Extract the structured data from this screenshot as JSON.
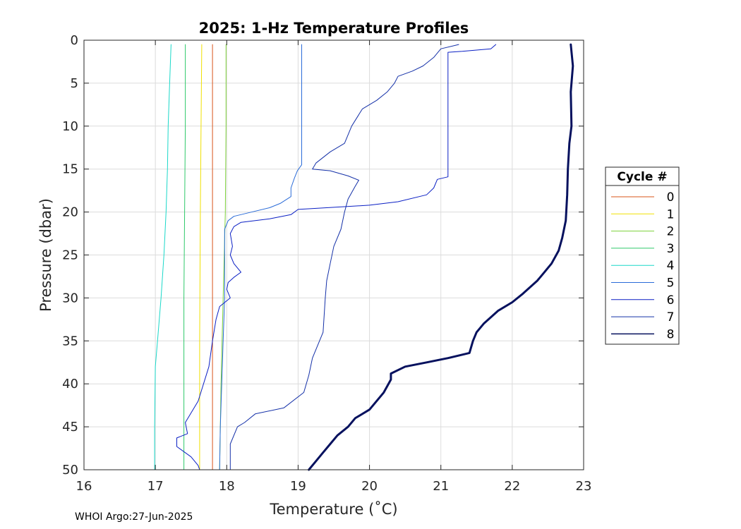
{
  "footer": "WHOI Argo:27-Jun-2025",
  "chart_data": {
    "type": "line",
    "title": "2025: 1-Hz Temperature Profiles",
    "xlabel": "Temperature (˚C)",
    "ylabel": "Pressure (dbar)",
    "xlim": [
      16,
      23
    ],
    "ylim": [
      0,
      50
    ],
    "y_reversed": true,
    "grid": true,
    "xticks": [
      "16",
      "17",
      "18",
      "19",
      "20",
      "21",
      "22",
      "23"
    ],
    "yticks": [
      "0",
      "5",
      "10",
      "15",
      "20",
      "25",
      "30",
      "35",
      "40",
      "45",
      "50"
    ],
    "legend": {
      "title": "Cycle #",
      "placement": "east-outside"
    },
    "series": [
      {
        "name": "0",
        "color": "#d9541a",
        "width": 1,
        "points": [
          [
            17.8,
            0.5
          ],
          [
            17.8,
            50
          ]
        ]
      },
      {
        "name": "1",
        "color": "#f0e000",
        "width": 1,
        "points": [
          [
            17.65,
            0.5
          ],
          [
            17.64,
            10
          ],
          [
            17.63,
            20
          ],
          [
            17.62,
            35
          ],
          [
            17.62,
            50
          ]
        ]
      },
      {
        "name": "2",
        "color": "#7dd13a",
        "width": 1,
        "points": [
          [
            17.99,
            0.5
          ],
          [
            17.99,
            10
          ],
          [
            17.98,
            20
          ],
          [
            17.95,
            30
          ],
          [
            17.92,
            40
          ],
          [
            17.9,
            50
          ]
        ]
      },
      {
        "name": "3",
        "color": "#2fc96a",
        "width": 1,
        "points": [
          [
            17.42,
            0.5
          ],
          [
            17.42,
            10
          ],
          [
            17.41,
            20
          ],
          [
            17.4,
            30
          ],
          [
            17.4,
            40
          ],
          [
            17.4,
            50
          ]
        ]
      },
      {
        "name": "4",
        "color": "#1ad8c9",
        "width": 1,
        "points": [
          [
            17.22,
            0.5
          ],
          [
            17.2,
            5
          ],
          [
            17.18,
            10
          ],
          [
            17.17,
            15
          ],
          [
            17.15,
            20
          ],
          [
            17.12,
            25
          ],
          [
            17.08,
            30
          ],
          [
            17.03,
            35
          ],
          [
            17.0,
            38
          ],
          [
            16.99,
            45
          ],
          [
            16.99,
            50
          ]
        ]
      },
      {
        "name": "5",
        "color": "#2a6bd8",
        "width": 1,
        "points": [
          [
            19.05,
            0.5
          ],
          [
            19.05,
            5
          ],
          [
            19.05,
            10
          ],
          [
            19.05,
            14.5
          ],
          [
            18.99,
            15.2
          ],
          [
            18.95,
            16
          ],
          [
            18.9,
            17.2
          ],
          [
            18.9,
            18.2
          ],
          [
            18.75,
            19
          ],
          [
            18.6,
            19.5
          ],
          [
            18.3,
            20.1
          ],
          [
            18.1,
            20.5
          ],
          [
            18.02,
            21
          ],
          [
            17.97,
            22
          ],
          [
            17.97,
            25
          ],
          [
            17.97,
            30
          ],
          [
            17.95,
            35
          ],
          [
            17.93,
            40
          ],
          [
            17.91,
            45
          ],
          [
            17.9,
            50
          ]
        ]
      },
      {
        "name": "6",
        "color": "#0a1fc4",
        "width": 1,
        "points": [
          [
            21.77,
            0.5
          ],
          [
            21.7,
            1.0
          ],
          [
            21.3,
            1.3
          ],
          [
            21.1,
            1.4
          ],
          [
            21.1,
            5
          ],
          [
            21.1,
            10
          ],
          [
            21.1,
            15
          ],
          [
            21.1,
            15.9
          ],
          [
            20.95,
            16.2
          ],
          [
            20.9,
            17.2
          ],
          [
            20.8,
            18
          ],
          [
            20.4,
            18.8
          ],
          [
            20.0,
            19.2
          ],
          [
            19.4,
            19.5
          ],
          [
            19.0,
            19.7
          ],
          [
            18.9,
            20.3
          ],
          [
            18.6,
            20.8
          ],
          [
            18.2,
            21.2
          ],
          [
            18.1,
            21.7
          ],
          [
            18.05,
            22.5
          ],
          [
            18.08,
            24
          ],
          [
            18.05,
            25
          ],
          [
            18.1,
            26
          ],
          [
            18.2,
            27
          ],
          [
            18.1,
            27.6
          ],
          [
            18.02,
            28.2
          ],
          [
            18.0,
            29
          ],
          [
            18.05,
            30
          ],
          [
            17.9,
            31
          ],
          [
            17.85,
            32.5
          ],
          [
            17.8,
            35
          ],
          [
            17.75,
            38
          ],
          [
            17.6,
            42
          ],
          [
            17.42,
            44.5
          ],
          [
            17.45,
            45.8
          ],
          [
            17.3,
            46.3
          ],
          [
            17.3,
            47.3
          ],
          [
            17.5,
            48.5
          ],
          [
            17.6,
            49.5
          ],
          [
            17.62,
            50
          ]
        ]
      },
      {
        "name": "7",
        "color": "#1430a8",
        "width": 1,
        "points": [
          [
            21.25,
            0.5
          ],
          [
            21.0,
            1.0
          ],
          [
            20.9,
            2.0
          ],
          [
            20.75,
            3.0
          ],
          [
            20.6,
            3.6
          ],
          [
            20.4,
            4.2
          ],
          [
            20.35,
            5
          ],
          [
            20.25,
            6
          ],
          [
            20.1,
            7
          ],
          [
            19.9,
            8
          ],
          [
            19.75,
            10
          ],
          [
            19.65,
            12
          ],
          [
            19.45,
            13
          ],
          [
            19.25,
            14.3
          ],
          [
            19.2,
            15
          ],
          [
            19.45,
            15.2
          ],
          [
            19.7,
            15.8
          ],
          [
            19.85,
            16.3
          ],
          [
            19.8,
            17
          ],
          [
            19.7,
            18.5
          ],
          [
            19.65,
            20
          ],
          [
            19.6,
            22
          ],
          [
            19.5,
            24
          ],
          [
            19.45,
            26
          ],
          [
            19.4,
            28
          ],
          [
            19.38,
            30
          ],
          [
            19.35,
            34
          ],
          [
            19.2,
            37
          ],
          [
            19.15,
            39
          ],
          [
            19.08,
            41
          ],
          [
            18.8,
            42.8
          ],
          [
            18.4,
            43.5
          ],
          [
            18.25,
            44.5
          ],
          [
            18.15,
            45
          ],
          [
            18.05,
            47
          ],
          [
            18.05,
            50
          ]
        ]
      },
      {
        "name": "8",
        "color": "#06115e",
        "width": 3,
        "points": [
          [
            22.82,
            0.5
          ],
          [
            22.85,
            3
          ],
          [
            22.82,
            6
          ],
          [
            22.83,
            10
          ],
          [
            22.8,
            12
          ],
          [
            22.78,
            15
          ],
          [
            22.77,
            18
          ],
          [
            22.75,
            21
          ],
          [
            22.7,
            23
          ],
          [
            22.65,
            24.5
          ],
          [
            22.55,
            26
          ],
          [
            22.45,
            27
          ],
          [
            22.35,
            28
          ],
          [
            22.15,
            29.5
          ],
          [
            22.0,
            30.5
          ],
          [
            21.8,
            31.5
          ],
          [
            21.6,
            33
          ],
          [
            21.5,
            34
          ],
          [
            21.45,
            35
          ],
          [
            21.4,
            36.4
          ],
          [
            21.1,
            37
          ],
          [
            20.8,
            37.5
          ],
          [
            20.5,
            38
          ],
          [
            20.3,
            38.8
          ],
          [
            20.3,
            39.5
          ],
          [
            20.2,
            41
          ],
          [
            20.1,
            42
          ],
          [
            20.0,
            43
          ],
          [
            19.8,
            44
          ],
          [
            19.7,
            45
          ],
          [
            19.55,
            46
          ],
          [
            19.45,
            47
          ],
          [
            19.35,
            48
          ],
          [
            19.25,
            49
          ],
          [
            19.15,
            50
          ]
        ]
      }
    ]
  }
}
